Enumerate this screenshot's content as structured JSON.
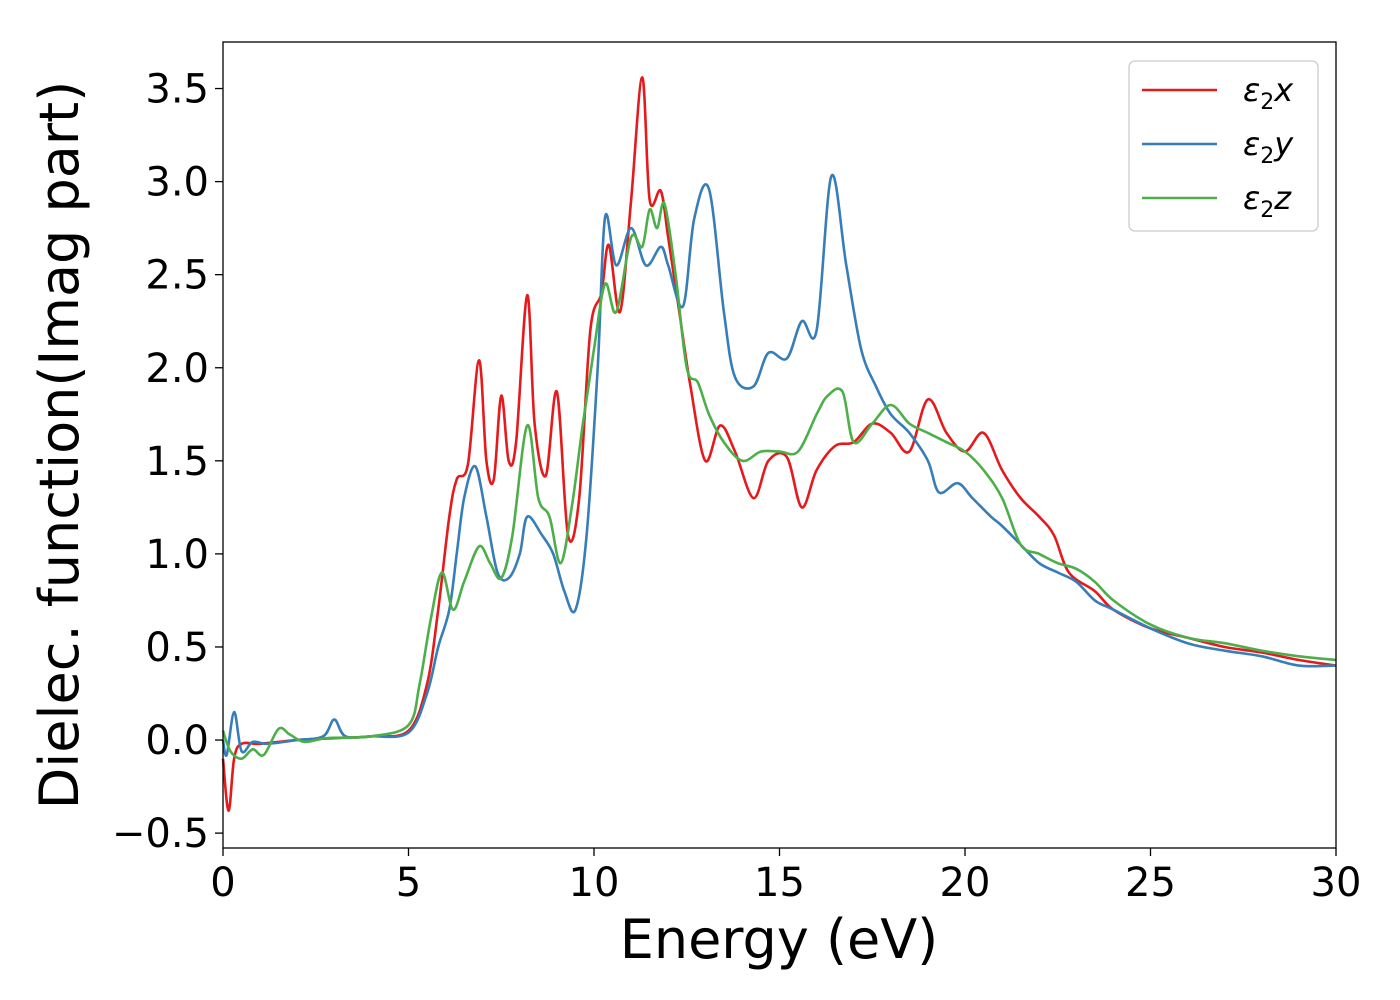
{
  "chart_data": {
    "type": "line",
    "title": "",
    "xlabel": "Energy (eV)",
    "ylabel": "Dielec. function(Imag part)",
    "xlim": [
      0,
      30
    ],
    "ylim": [
      -0.58,
      3.75
    ],
    "xticks": [
      0,
      5,
      10,
      15,
      20,
      25,
      30
    ],
    "yticks": [
      -0.5,
      0.0,
      0.5,
      1.0,
      1.5,
      2.0,
      2.5,
      3.0,
      3.5
    ],
    "xtick_labels": [
      "0",
      "5",
      "10",
      "15",
      "20",
      "25",
      "30"
    ],
    "ytick_labels": [
      "−0.5",
      "0.0",
      "0.5",
      "1.0",
      "1.5",
      "2.0",
      "2.5",
      "3.0",
      "3.5"
    ],
    "grid": false,
    "legend_position": "top-right",
    "series": [
      {
        "name": "ε₂x",
        "legend_base": "ε",
        "legend_sub": "2",
        "legend_var": "x",
        "color": "#e41a1c",
        "points": [
          [
            0,
            -0.1
          ],
          [
            0.15,
            -0.38
          ],
          [
            0.3,
            -0.1
          ],
          [
            0.5,
            -0.02
          ],
          [
            1,
            -0.02
          ],
          [
            2,
            0
          ],
          [
            3,
            0.01
          ],
          [
            4,
            0.02
          ],
          [
            5,
            0.05
          ],
          [
            5.5,
            0.3
          ],
          [
            5.8,
            0.7
          ],
          [
            6.1,
            1.2
          ],
          [
            6.3,
            1.4
          ],
          [
            6.6,
            1.48
          ],
          [
            6.9,
            2.04
          ],
          [
            7.1,
            1.5
          ],
          [
            7.3,
            1.4
          ],
          [
            7.5,
            1.85
          ],
          [
            7.7,
            1.5
          ],
          [
            7.9,
            1.6
          ],
          [
            8.2,
            2.39
          ],
          [
            8.4,
            1.7
          ],
          [
            8.7,
            1.42
          ],
          [
            9.0,
            1.87
          ],
          [
            9.3,
            1.1
          ],
          [
            9.6,
            1.3
          ],
          [
            9.9,
            2.2
          ],
          [
            10.2,
            2.4
          ],
          [
            10.4,
            2.66
          ],
          [
            10.7,
            2.3
          ],
          [
            11.0,
            2.9
          ],
          [
            11.3,
            3.56
          ],
          [
            11.5,
            2.9
          ],
          [
            11.8,
            2.95
          ],
          [
            12.0,
            2.7
          ],
          [
            12.3,
            2.3
          ],
          [
            12.6,
            1.9
          ],
          [
            13.0,
            1.5
          ],
          [
            13.4,
            1.69
          ],
          [
            13.8,
            1.55
          ],
          [
            14.3,
            1.3
          ],
          [
            14.7,
            1.5
          ],
          [
            15.2,
            1.52
          ],
          [
            15.6,
            1.25
          ],
          [
            16.0,
            1.45
          ],
          [
            16.5,
            1.58
          ],
          [
            17.0,
            1.6
          ],
          [
            17.5,
            1.7
          ],
          [
            18.0,
            1.65
          ],
          [
            18.5,
            1.55
          ],
          [
            19.0,
            1.83
          ],
          [
            19.5,
            1.65
          ],
          [
            20.0,
            1.55
          ],
          [
            20.5,
            1.65
          ],
          [
            21.0,
            1.45
          ],
          [
            21.5,
            1.3
          ],
          [
            22.0,
            1.2
          ],
          [
            22.4,
            1.1
          ],
          [
            22.8,
            0.9
          ],
          [
            23.5,
            0.8
          ],
          [
            24.0,
            0.7
          ],
          [
            25.0,
            0.6
          ],
          [
            26.0,
            0.55
          ],
          [
            27.0,
            0.5
          ],
          [
            28.0,
            0.47
          ],
          [
            29.0,
            0.43
          ],
          [
            30.0,
            0.4
          ]
        ]
      },
      {
        "name": "ε₂y",
        "legend_base": "ε",
        "legend_sub": "2",
        "legend_var": "y",
        "color": "#377eb8",
        "points": [
          [
            0,
            0
          ],
          [
            0.1,
            -0.08
          ],
          [
            0.3,
            0.15
          ],
          [
            0.5,
            -0.06
          ],
          [
            0.8,
            -0.01
          ],
          [
            1.2,
            -0.02
          ],
          [
            2,
            0
          ],
          [
            2.7,
            0.02
          ],
          [
            3.0,
            0.11
          ],
          [
            3.3,
            0.02
          ],
          [
            4,
            0.02
          ],
          [
            5,
            0.04
          ],
          [
            5.5,
            0.25
          ],
          [
            5.8,
            0.5
          ],
          [
            6.1,
            0.7
          ],
          [
            6.3,
            1.0
          ],
          [
            6.5,
            1.3
          ],
          [
            6.8,
            1.47
          ],
          [
            7.1,
            1.2
          ],
          [
            7.4,
            0.9
          ],
          [
            7.7,
            0.87
          ],
          [
            8.0,
            1.0
          ],
          [
            8.2,
            1.2
          ],
          [
            8.6,
            1.1
          ],
          [
            8.9,
            1.0
          ],
          [
            9.2,
            0.8
          ],
          [
            9.5,
            0.7
          ],
          [
            9.8,
            1.1
          ],
          [
            10.1,
            2.0
          ],
          [
            10.3,
            2.81
          ],
          [
            10.6,
            2.55
          ],
          [
            11.0,
            2.75
          ],
          [
            11.4,
            2.55
          ],
          [
            11.8,
            2.65
          ],
          [
            12.0,
            2.55
          ],
          [
            12.4,
            2.33
          ],
          [
            12.7,
            2.8
          ],
          [
            13.1,
            2.96
          ],
          [
            13.5,
            2.3
          ],
          [
            13.8,
            1.95
          ],
          [
            14.3,
            1.9
          ],
          [
            14.7,
            2.08
          ],
          [
            15.2,
            2.05
          ],
          [
            15.6,
            2.25
          ],
          [
            16.0,
            2.2
          ],
          [
            16.4,
            3.03
          ],
          [
            16.8,
            2.55
          ],
          [
            17.2,
            2.1
          ],
          [
            17.6,
            1.9
          ],
          [
            18.0,
            1.75
          ],
          [
            18.5,
            1.65
          ],
          [
            19.0,
            1.5
          ],
          [
            19.3,
            1.33
          ],
          [
            19.8,
            1.38
          ],
          [
            20.2,
            1.3
          ],
          [
            20.7,
            1.2
          ],
          [
            21.0,
            1.15
          ],
          [
            21.5,
            1.05
          ],
          [
            22.0,
            0.95
          ],
          [
            22.5,
            0.9
          ],
          [
            23.0,
            0.85
          ],
          [
            23.5,
            0.75
          ],
          [
            24.0,
            0.7
          ],
          [
            25.0,
            0.6
          ],
          [
            26.0,
            0.52
          ],
          [
            27.0,
            0.48
          ],
          [
            28.0,
            0.45
          ],
          [
            29.0,
            0.4
          ],
          [
            30.0,
            0.4
          ]
        ]
      },
      {
        "name": "ε₂z",
        "legend_base": "ε",
        "legend_sub": "2",
        "legend_var": "z",
        "color": "#4daf4a",
        "points": [
          [
            0,
            0.05
          ],
          [
            0.2,
            -0.06
          ],
          [
            0.5,
            -0.1
          ],
          [
            0.8,
            -0.05
          ],
          [
            1.1,
            -0.08
          ],
          [
            1.5,
            0.06
          ],
          [
            1.8,
            0.03
          ],
          [
            2.2,
            -0.01
          ],
          [
            2.8,
            0.01
          ],
          [
            4,
            0.02
          ],
          [
            5,
            0.08
          ],
          [
            5.3,
            0.3
          ],
          [
            5.6,
            0.65
          ],
          [
            5.9,
            0.9
          ],
          [
            6.2,
            0.7
          ],
          [
            6.5,
            0.85
          ],
          [
            6.9,
            1.04
          ],
          [
            7.2,
            0.95
          ],
          [
            7.5,
            0.87
          ],
          [
            7.8,
            1.1
          ],
          [
            8.2,
            1.69
          ],
          [
            8.5,
            1.3
          ],
          [
            8.8,
            1.2
          ],
          [
            9.1,
            0.95
          ],
          [
            9.4,
            1.25
          ],
          [
            9.7,
            1.7
          ],
          [
            10.0,
            2.1
          ],
          [
            10.3,
            2.45
          ],
          [
            10.6,
            2.3
          ],
          [
            11.0,
            2.7
          ],
          [
            11.3,
            2.65
          ],
          [
            11.5,
            2.85
          ],
          [
            11.7,
            2.75
          ],
          [
            11.9,
            2.88
          ],
          [
            12.2,
            2.5
          ],
          [
            12.5,
            2.0
          ],
          [
            12.8,
            1.92
          ],
          [
            13.1,
            1.75
          ],
          [
            13.5,
            1.6
          ],
          [
            14.0,
            1.5
          ],
          [
            14.5,
            1.55
          ],
          [
            15.0,
            1.55
          ],
          [
            15.5,
            1.55
          ],
          [
            16.0,
            1.75
          ],
          [
            16.3,
            1.85
          ],
          [
            16.7,
            1.87
          ],
          [
            17.0,
            1.6
          ],
          [
            17.5,
            1.7
          ],
          [
            18.0,
            1.8
          ],
          [
            18.5,
            1.7
          ],
          [
            19.0,
            1.65
          ],
          [
            19.5,
            1.6
          ],
          [
            20.0,
            1.55
          ],
          [
            20.5,
            1.45
          ],
          [
            21.0,
            1.3
          ],
          [
            21.5,
            1.05
          ],
          [
            22.0,
            1.0
          ],
          [
            22.5,
            0.95
          ],
          [
            23.0,
            0.92
          ],
          [
            23.5,
            0.85
          ],
          [
            24.0,
            0.75
          ],
          [
            25.0,
            0.62
          ],
          [
            26.0,
            0.55
          ],
          [
            27.0,
            0.52
          ],
          [
            28.0,
            0.48
          ],
          [
            29.0,
            0.45
          ],
          [
            30.0,
            0.43
          ]
        ]
      }
    ]
  }
}
